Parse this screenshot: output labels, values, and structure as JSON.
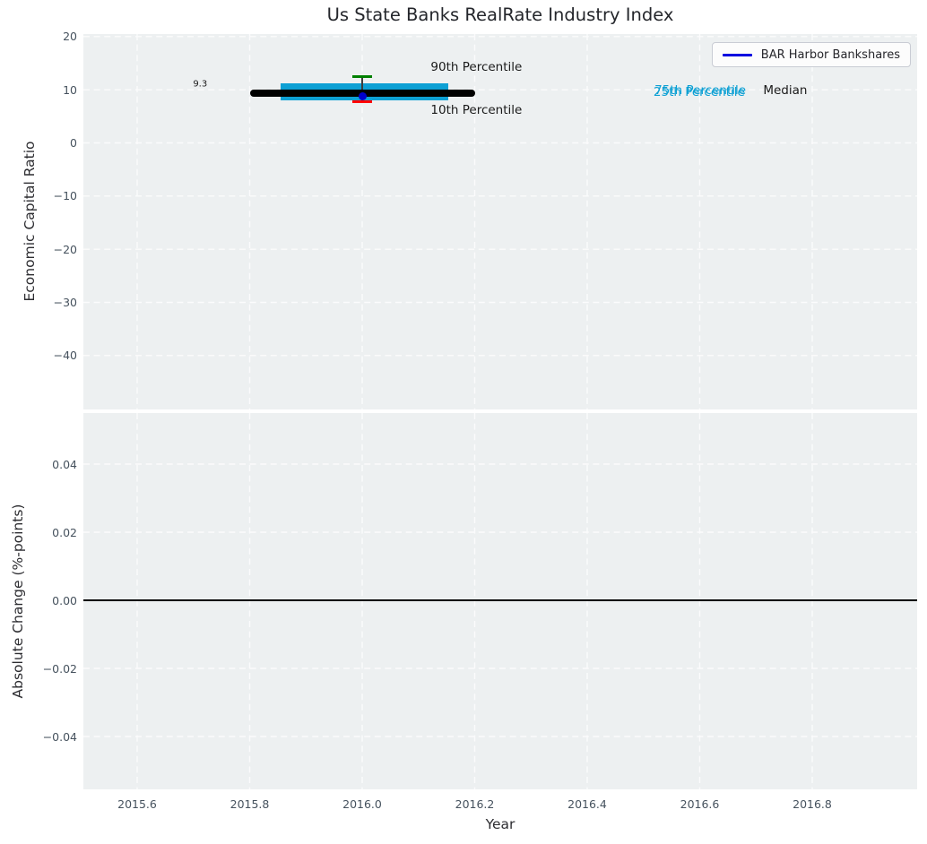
{
  "title": "Us State Banks RealRate Industry Index",
  "legend": {
    "label": "BAR Harbor Bankshares",
    "line_color": "#0000e0",
    "position": "upper-right"
  },
  "colors": {
    "figure_bg": "#ffffff",
    "axes_bg": "#edf0f1",
    "grid": "#fbfbfc",
    "tick_label": "#46525e",
    "iqr_box": "#0da0d4",
    "median_line": "#000000",
    "whisker_line": "#3c3c3c",
    "p90_cap": "#008000",
    "p10_cap": "#ff0000",
    "company_dot": "#0000cc",
    "zero_line": "#000000",
    "annotation_text": "#1a1a1a",
    "percentile_text": "#0da0d4"
  },
  "chart_data": [
    {
      "type": "scatter",
      "subplot": "top",
      "title": "Us State Banks RealRate Industry Index",
      "xlabel": "",
      "ylabel": "Economic Capital Ratio",
      "xlim": [
        2015.5,
        2016.99
      ],
      "ylim": [
        -50.5,
        20.5
      ],
      "grid": "white-dashed",
      "legend_entries": [
        "BAR Harbor Bankshares"
      ],
      "legend_position": "upper-right",
      "xticks": [
        {
          "label": "2015.6",
          "value": 2015.6
        },
        {
          "label": "2015.8",
          "value": 2015.8
        },
        {
          "label": "2016.0",
          "value": 2016.0
        },
        {
          "label": "2016.2",
          "value": 2016.2
        },
        {
          "label": "2016.4",
          "value": 2016.4
        },
        {
          "label": "2016.6",
          "value": 2016.6
        },
        {
          "label": "2016.8",
          "value": 2016.8
        }
      ],
      "yticks": [
        {
          "label": "20",
          "value": 20
        },
        {
          "label": "10",
          "value": 10
        },
        {
          "label": "0",
          "value": 0
        },
        {
          "label": "−10",
          "value": -10
        },
        {
          "label": "−20",
          "value": -20
        },
        {
          "label": "−30",
          "value": -30
        },
        {
          "label": "−40",
          "value": -40
        }
      ],
      "series": [
        {
          "name": "BAR Harbor Bankshares",
          "marker": "dot",
          "color": "#0000cc",
          "points": [
            {
              "x": 2016.0,
              "y": 8.8
            }
          ]
        }
      ],
      "industry_distribution": {
        "x": 2016.0,
        "median": 9.3,
        "median_label": "9.3",
        "p75": 11.2,
        "p25": 8.0,
        "p90": 12.4,
        "p10": 7.7,
        "median_line_x_span": [
          2015.8,
          2016.2
        ],
        "iqr_box_x_span": [
          2015.855,
          2016.153
        ],
        "whisker_cap_width_years": 0.0335
      },
      "annotations": [
        {
          "name": "median-value-label",
          "text": "9.3",
          "x": 2015.712,
          "y": 11.0,
          "size": "small"
        },
        {
          "name": "p90-label",
          "text": "90th Percentile",
          "x": 2016.203,
          "y": 14.2
        },
        {
          "name": "p10-label",
          "text": "10th Percentile",
          "x": 2016.203,
          "y": 6.1
        },
        {
          "name": "p75-label",
          "text": "75th Percentile",
          "x": 2016.601,
          "y": 9.85,
          "color": "#0da0d4"
        },
        {
          "name": "p25-label",
          "text": "25th Percentile",
          "x": 2016.599,
          "y": 9.55,
          "color": "#0da0d4"
        },
        {
          "name": "median-label",
          "text": "Median",
          "x": 2016.752,
          "y": 9.8
        }
      ]
    },
    {
      "type": "line",
      "subplot": "bottom",
      "xlabel": "Year",
      "ylabel": "Absolute Change (%-points)",
      "xlim": [
        2015.5,
        2016.99
      ],
      "ylim": [
        -0.0555,
        0.0553
      ],
      "grid": "white-dashed",
      "zero_line": 0.0,
      "xticks": [
        {
          "label": "2015.6",
          "value": 2015.6
        },
        {
          "label": "2015.8",
          "value": 2015.8
        },
        {
          "label": "2016.0",
          "value": 2016.0
        },
        {
          "label": "2016.2",
          "value": 2016.2
        },
        {
          "label": "2016.4",
          "value": 2016.4
        },
        {
          "label": "2016.6",
          "value": 2016.6
        },
        {
          "label": "2016.8",
          "value": 2016.8
        }
      ],
      "yticks": [
        {
          "label": "0.04",
          "value": 0.04
        },
        {
          "label": "0.02",
          "value": 0.02
        },
        {
          "label": "0.00",
          "value": 0.0
        },
        {
          "label": "−0.02",
          "value": -0.02
        },
        {
          "label": "−0.04",
          "value": -0.04
        }
      ],
      "series": []
    }
  ]
}
